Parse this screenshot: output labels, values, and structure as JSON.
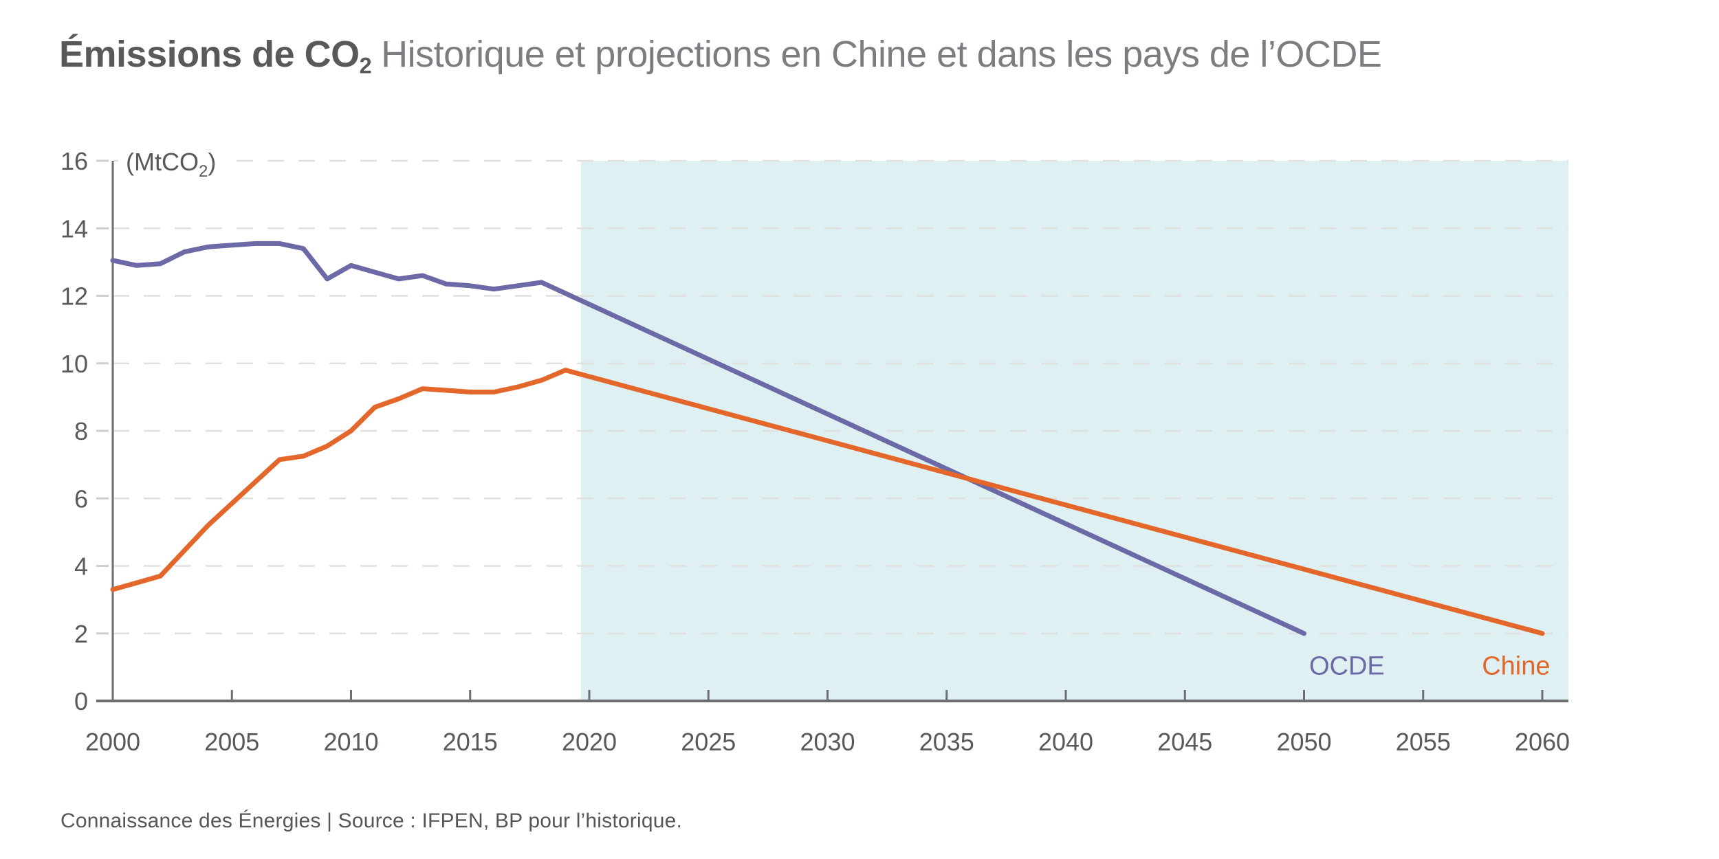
{
  "title": {
    "bold": "Émissions de CO",
    "bold_sub": "2",
    "rest": "Historique et projections en Chine et dans les pays de l’OCDE"
  },
  "footer": "Connaissance des Énergies | Source : IFPEN, BP pour l’historique.",
  "colors": {
    "ocde": "#6B69A6",
    "chine": "#E3672A",
    "projection_shade": "#DFF0F3",
    "axis": "#6D6E71",
    "grid": "#E0E0E0",
    "y_tick_dash": "#CDCFD0",
    "tick_text": "#58595B",
    "unit_text": "#58595B"
  },
  "chart_data": {
    "type": "line",
    "title": "Émissions de CO2 — Historique et projections en Chine et dans les pays de l'OCDE",
    "unit_label": {
      "pre": "(MtCO",
      "sub": "2",
      "post": ")"
    },
    "xlim": [
      2000,
      2061.1
    ],
    "ylim": [
      0,
      16
    ],
    "x_ticks": [
      2000,
      2005,
      2010,
      2015,
      2020,
      2025,
      2030,
      2035,
      2040,
      2045,
      2050,
      2055,
      2060
    ],
    "y_ticks": [
      0,
      2,
      4,
      6,
      8,
      10,
      12,
      14,
      16
    ],
    "grid": "dashed-horizontal",
    "legend_position": "end-of-line-labels",
    "projection_region": {
      "from_year": 2019.65,
      "to_year": 2061.1
    },
    "series": [
      {
        "name": "OCDE",
        "color_key": "ocde",
        "label_pos": {
          "year": 2051.8,
          "value": 1.05
        },
        "points": [
          [
            2000,
            13.05
          ],
          [
            2001,
            12.9
          ],
          [
            2002,
            12.95
          ],
          [
            2003,
            13.3
          ],
          [
            2004,
            13.45
          ],
          [
            2005,
            13.5
          ],
          [
            2006,
            13.55
          ],
          [
            2007,
            13.55
          ],
          [
            2008,
            13.4
          ],
          [
            2009,
            12.5
          ],
          [
            2010,
            12.9
          ],
          [
            2011,
            12.7
          ],
          [
            2012,
            12.5
          ],
          [
            2013,
            12.6
          ],
          [
            2014,
            12.35
          ],
          [
            2015,
            12.3
          ],
          [
            2016,
            12.2
          ],
          [
            2017,
            12.3
          ],
          [
            2018,
            12.4
          ],
          [
            2050,
            2.0
          ]
        ]
      },
      {
        "name": "Chine",
        "color_key": "chine",
        "label_pos": {
          "year": 2058.9,
          "value": 1.05
        },
        "points": [
          [
            2000,
            3.3
          ],
          [
            2001,
            3.5
          ],
          [
            2002,
            3.7
          ],
          [
            2003,
            4.45
          ],
          [
            2004,
            5.2
          ],
          [
            2005,
            5.85
          ],
          [
            2006,
            6.5
          ],
          [
            2007,
            7.15
          ],
          [
            2008,
            7.25
          ],
          [
            2009,
            7.55
          ],
          [
            2010,
            8.0
          ],
          [
            2011,
            8.7
          ],
          [
            2012,
            8.95
          ],
          [
            2013,
            9.25
          ],
          [
            2014,
            9.2
          ],
          [
            2015,
            9.15
          ],
          [
            2016,
            9.15
          ],
          [
            2017,
            9.3
          ],
          [
            2018,
            9.5
          ],
          [
            2019,
            9.8
          ],
          [
            2060,
            2.0
          ]
        ]
      }
    ]
  }
}
